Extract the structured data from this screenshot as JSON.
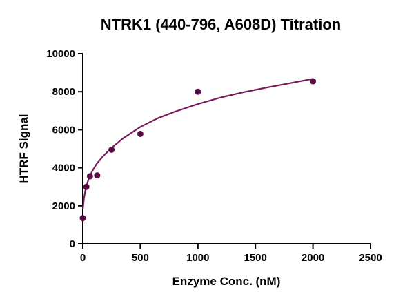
{
  "chart_data": {
    "type": "scatter",
    "title": "NTRK1 (440-796, A608D) Titration",
    "xlabel": "Enzyme Conc. (nM)",
    "ylabel": "HTRF Signal",
    "xlim": [
      0,
      2500
    ],
    "ylim": [
      0,
      10000
    ],
    "xticks": [
      "0",
      "500",
      "1000",
      "1500",
      "2000",
      "2500"
    ],
    "yticks": [
      "0",
      "2000",
      "4000",
      "6000",
      "8000",
      "10000"
    ],
    "grid": false,
    "legend": "none",
    "marker_color": "#5a0b45",
    "curve_color": "#7a1a5a",
    "series": [
      {
        "x": [
          0,
          31,
          62,
          125,
          250,
          500,
          1000,
          2000
        ],
        "y": [
          1350,
          3000,
          3550,
          3600,
          4950,
          5780,
          8000,
          8550
        ]
      }
    ],
    "fit_curve": {
      "x": [
        0,
        10,
        25,
        50,
        80,
        120,
        175,
        250,
        350,
        500,
        650,
        800,
        1000,
        1200,
        1400,
        1600,
        1800,
        2000
      ],
      "y": [
        1800,
        2400,
        2900,
        3400,
        3800,
        4200,
        4600,
        5050,
        5550,
        6150,
        6600,
        6950,
        7350,
        7700,
        7980,
        8220,
        8450,
        8680
      ]
    }
  }
}
